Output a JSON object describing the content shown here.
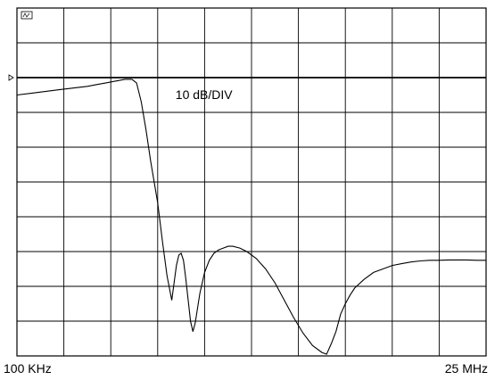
{
  "chart_data": {
    "type": "line",
    "scale_label": "10 dB/DIV",
    "x_start_label": "100 KHz",
    "x_stop_label": "25 MHz",
    "x_divisions": 10,
    "y_divisions": 10,
    "grid": true,
    "marker_icon": "trace-marker-icon",
    "reference_marker_icon": "reference-level-triangle-icon",
    "series": [
      {
        "x": [
          0.0,
          0.3,
          0.6,
          0.9,
          1.2,
          1.5,
          1.7,
          1.9,
          2.1,
          2.3,
          2.45,
          2.55,
          2.65,
          2.75,
          2.85,
          3.0,
          3.1,
          3.2,
          3.3,
          3.35,
          3.4,
          3.45,
          3.5,
          3.55,
          3.6,
          3.65,
          3.7,
          3.75,
          3.8,
          3.9,
          4.0,
          4.1,
          4.2,
          4.3,
          4.4,
          4.5,
          4.6,
          4.75,
          4.9,
          5.1,
          5.3,
          5.5,
          5.7,
          5.9,
          6.1,
          6.3,
          6.5,
          6.6,
          6.7,
          6.8,
          6.85,
          6.9,
          7.0,
          7.1,
          7.2,
          7.4,
          7.6,
          7.8,
          8.0,
          8.2,
          8.4,
          8.6,
          8.8,
          9.0,
          9.2,
          9.4,
          9.6,
          9.8,
          10.0
        ],
        "y": [
          7.5,
          7.55,
          7.6,
          7.65,
          7.7,
          7.75,
          7.8,
          7.85,
          7.9,
          7.95,
          7.95,
          7.85,
          7.3,
          6.5,
          5.6,
          4.4,
          3.3,
          2.3,
          1.6,
          2.1,
          2.6,
          2.9,
          2.95,
          2.75,
          2.2,
          1.6,
          1.0,
          0.7,
          0.95,
          1.8,
          2.4,
          2.75,
          2.95,
          3.05,
          3.1,
          3.15,
          3.15,
          3.1,
          3.0,
          2.8,
          2.5,
          2.1,
          1.6,
          1.1,
          0.65,
          0.3,
          0.1,
          0.05,
          0.35,
          0.7,
          0.95,
          1.2,
          1.5,
          1.75,
          1.95,
          2.2,
          2.4,
          2.5,
          2.6,
          2.65,
          2.7,
          2.73,
          2.75,
          2.75,
          2.76,
          2.76,
          2.76,
          2.75,
          2.75
        ]
      }
    ]
  }
}
